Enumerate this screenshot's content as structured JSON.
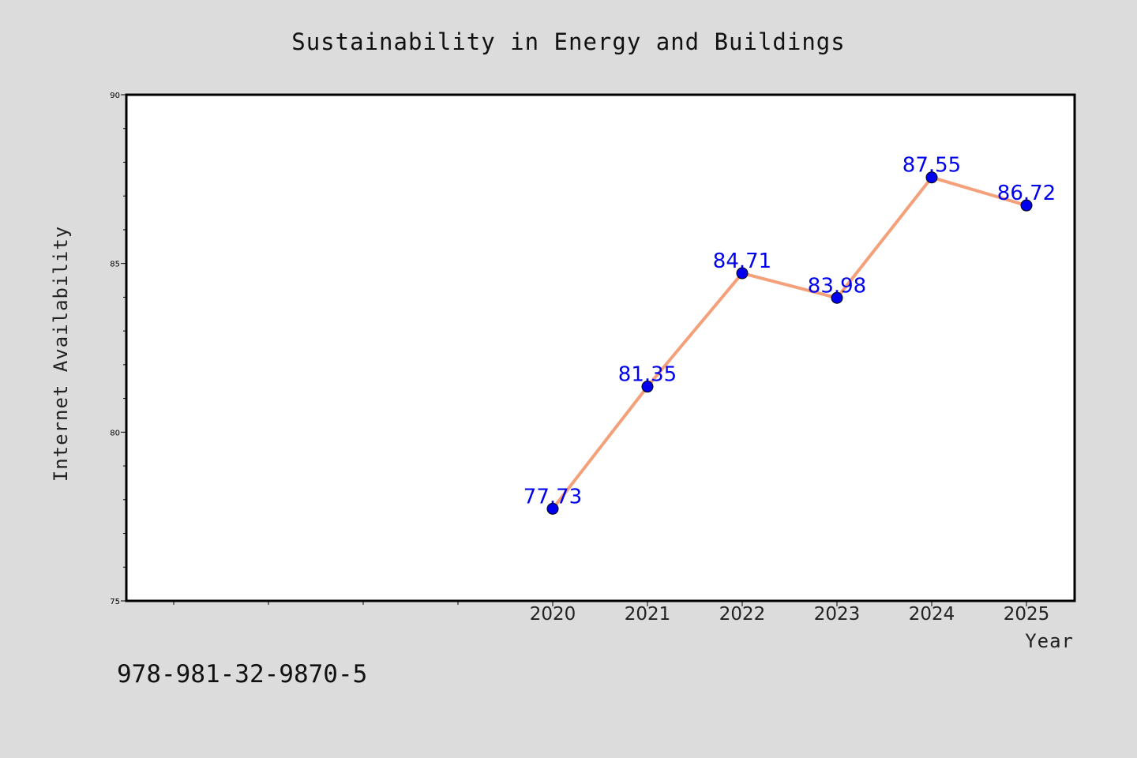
{
  "chart_data": {
    "type": "line",
    "title": "Sustainability in Energy and Buildings",
    "xlabel": "Year",
    "ylabel": "Internet Availability",
    "x": [
      2020,
      2021,
      2022,
      2023,
      2024,
      2025
    ],
    "xtick_labels": [
      "2020",
      "2021",
      "2022",
      "2023",
      "2024",
      "2025"
    ],
    "ylim": [
      75,
      90
    ],
    "yticks": [
      75,
      80,
      85,
      90
    ],
    "yticks_labels": [
      "75",
      "80",
      "85",
      "90"
    ],
    "grid": false,
    "series": [
      {
        "values": [
          77.73,
          81.35,
          84.71,
          83.98,
          87.55,
          86.72
        ],
        "labels": [
          "77.73",
          "81.35",
          "84.71",
          "83.98",
          "87.55",
          "86.72"
        ],
        "line_color": "#f4a07a",
        "marker_color": "#0000ee",
        "label_color": "#0000ee"
      }
    ]
  },
  "footer": {
    "isbn": "978-981-32-9870-5"
  },
  "colors": {
    "background": "#dcdcdc",
    "plot_background": "#ffffff"
  }
}
